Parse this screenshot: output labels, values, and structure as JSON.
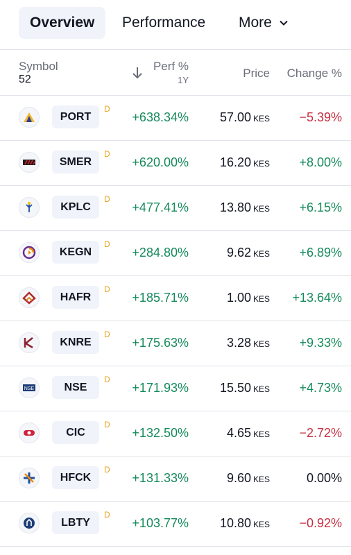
{
  "tabs": {
    "overview": "Overview",
    "performance": "Performance",
    "more": "More"
  },
  "header": {
    "symbol": "Symbol",
    "count": "52",
    "perf": "Perf %",
    "perf_period": "1Y",
    "price": "Price",
    "change": "Change %"
  },
  "rows": [
    {
      "ticker": "PORT",
      "flag": "D",
      "perf": "+638.34%",
      "price": "57.00",
      "currency": "KES",
      "change": "−5.39%",
      "icon": "port-logo-icon"
    },
    {
      "ticker": "SMER",
      "flag": "D",
      "perf": "+620.00%",
      "price": "16.20",
      "currency": "KES",
      "change": "+8.00%",
      "icon": "smer-logo-icon"
    },
    {
      "ticker": "KPLC",
      "flag": "D",
      "perf": "+477.41%",
      "price": "13.80",
      "currency": "KES",
      "change": "+6.15%",
      "icon": "kplc-logo-icon"
    },
    {
      "ticker": "KEGN",
      "flag": "D",
      "perf": "+284.80%",
      "price": "9.62",
      "currency": "KES",
      "change": "+6.89%",
      "icon": "kegn-logo-icon"
    },
    {
      "ticker": "HAFR",
      "flag": "D",
      "perf": "+185.71%",
      "price": "1.00",
      "currency": "KES",
      "change": "+13.64%",
      "icon": "hafr-logo-icon"
    },
    {
      "ticker": "KNRE",
      "flag": "D",
      "perf": "+175.63%",
      "price": "3.28",
      "currency": "KES",
      "change": "+9.33%",
      "icon": "knre-logo-icon"
    },
    {
      "ticker": "NSE",
      "flag": "D",
      "perf": "+171.93%",
      "price": "15.50",
      "currency": "KES",
      "change": "+4.73%",
      "icon": "nse-logo-icon"
    },
    {
      "ticker": "CIC",
      "flag": "D",
      "perf": "+132.50%",
      "price": "4.65",
      "currency": "KES",
      "change": "−2.72%",
      "icon": "cic-logo-icon"
    },
    {
      "ticker": "HFCK",
      "flag": "D",
      "perf": "+131.33%",
      "price": "9.60",
      "currency": "KES",
      "change": "0.00%",
      "icon": "hfck-logo-icon"
    },
    {
      "ticker": "LBTY",
      "flag": "D",
      "perf": "+103.77%",
      "price": "10.80",
      "currency": "KES",
      "change": "−0.92%",
      "icon": "lbty-logo-icon"
    }
  ],
  "colors": {
    "positive": "#168a5c",
    "negative": "#c62f43",
    "flag": "#e8a21a"
  }
}
